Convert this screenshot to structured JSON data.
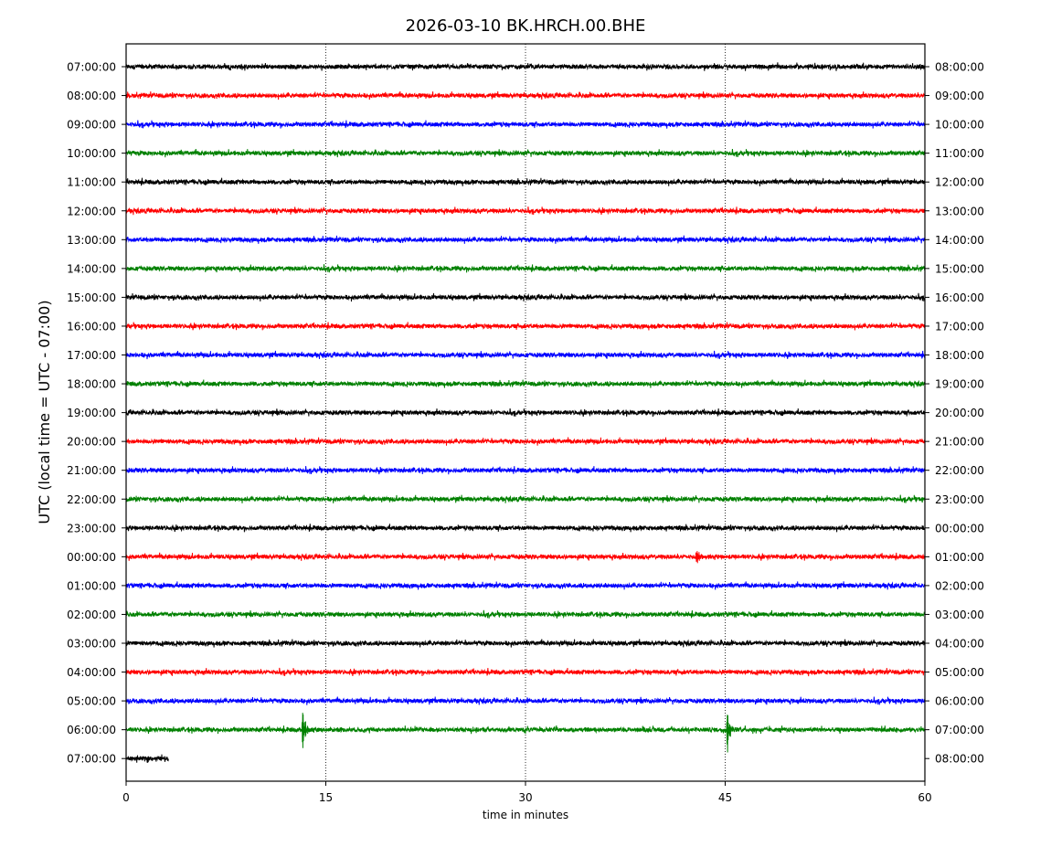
{
  "chart_data": {
    "type": "line",
    "title": "2026-03-10 BK.HRCH.00.BHE",
    "xlabel": "time in minutes",
    "ylabel": "UTC (local time = UTC - 07:00)",
    "xlim": [
      0,
      60
    ],
    "x_ticks": [
      "0",
      "15",
      "30",
      "45",
      "60"
    ],
    "x_tick_values": [
      0,
      15,
      30,
      45,
      60
    ],
    "vertical_gridlines_at_minutes": [
      15,
      30,
      45
    ],
    "grid": "vertical dotted at major x ticks",
    "row_colors": [
      "#000000",
      "#ff0000",
      "#0000ff",
      "#008000"
    ],
    "left_tick_labels": [
      "07:00:00",
      "08:00:00",
      "09:00:00",
      "10:00:00",
      "11:00:00",
      "12:00:00",
      "13:00:00",
      "14:00:00",
      "15:00:00",
      "16:00:00",
      "17:00:00",
      "18:00:00",
      "19:00:00",
      "20:00:00",
      "21:00:00",
      "22:00:00",
      "23:00:00",
      "00:00:00",
      "01:00:00",
      "02:00:00",
      "03:00:00",
      "04:00:00",
      "05:00:00",
      "06:00:00",
      "07:00:00"
    ],
    "right_tick_labels": [
      "08:00:00",
      "09:00:00",
      "10:00:00",
      "11:00:00",
      "12:00:00",
      "13:00:00",
      "14:00:00",
      "15:00:00",
      "16:00:00",
      "17:00:00",
      "18:00:00",
      "19:00:00",
      "20:00:00",
      "21:00:00",
      "22:00:00",
      "23:00:00",
      "00:00:00",
      "01:00:00",
      "02:00:00",
      "03:00:00",
      "04:00:00",
      "05:00:00",
      "06:00:00",
      "07:00:00",
      "08:00:00"
    ],
    "last_row_end_minutes": 3.2,
    "events": [
      {
        "row": 17,
        "minute": 42.8,
        "amplitude": "small"
      },
      {
        "row": 23,
        "minute": 13.2,
        "amplitude": "large"
      },
      {
        "row": 23,
        "minute": 45.1,
        "amplitude": "large"
      }
    ]
  }
}
